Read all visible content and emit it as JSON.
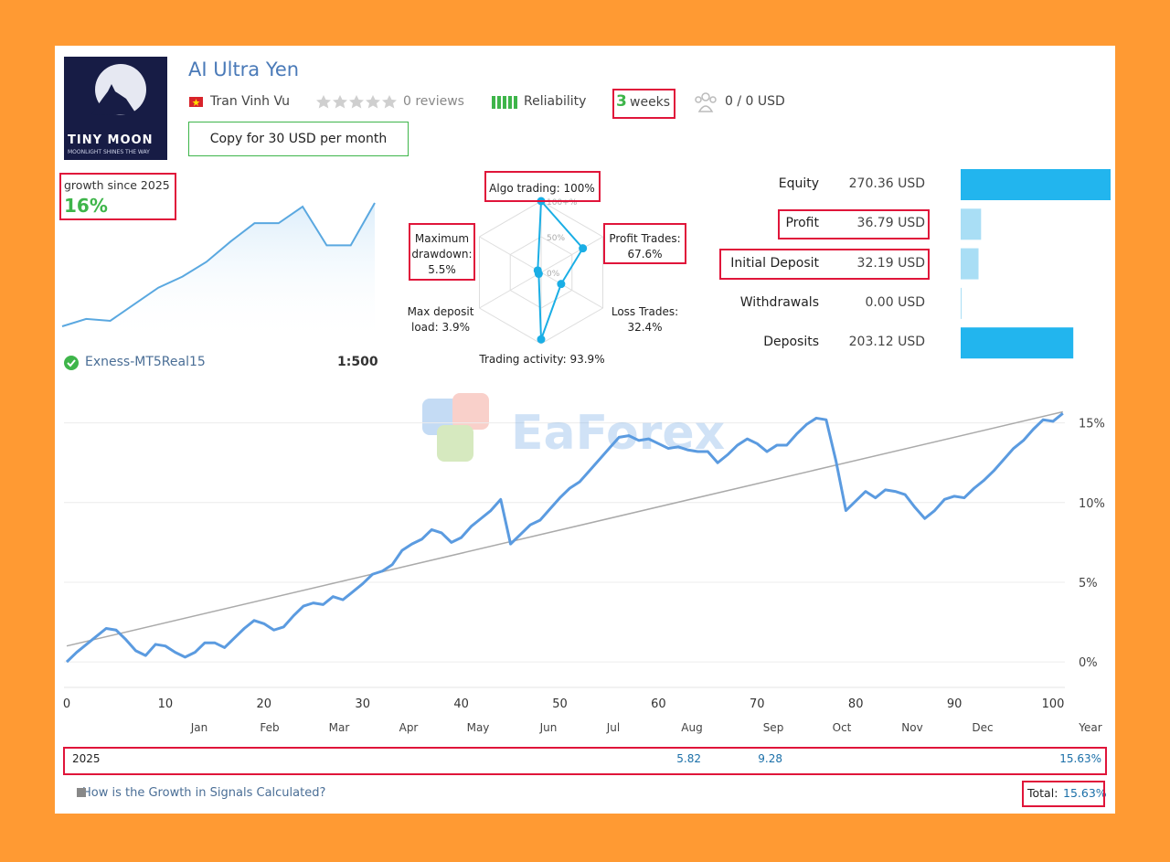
{
  "header": {
    "logo_title": "TINY MOON",
    "logo_subtitle": "MOONLIGHT SHINES THE WAY",
    "title": "AI Ultra Yen",
    "author": "Tran Vinh Vu",
    "reviews": "0 reviews",
    "reliability": "Reliability",
    "weeks_value": "3",
    "weeks_unit": "weeks",
    "subscribers": "0 / 0 USD",
    "copy_button": "Copy for 30 USD per month"
  },
  "growth": {
    "label": "growth since 2025",
    "value": "16%",
    "mini_values": [
      1,
      5,
      4,
      13,
      22,
      28,
      36,
      47,
      57,
      57,
      66,
      45,
      45,
      68
    ],
    "color": "#5aa8e0"
  },
  "account": {
    "broker": "Exness-MT5Real15",
    "leverage": "1:500"
  },
  "radar": {
    "type": "radar",
    "color": "#1aaee5",
    "ticks": [
      {
        "value": 0,
        "label": "0%"
      },
      {
        "value": 50,
        "label": "50%"
      },
      {
        "value": 100,
        "label": "100+%"
      }
    ],
    "axes": [
      {
        "name": "Algo trading:",
        "value": 100,
        "value_label": "100%"
      },
      {
        "name": "Profit Trades:",
        "value": 67.6,
        "value_label": "67.6%"
      },
      {
        "name": "Loss Trades:",
        "value": 32.4,
        "value_label": "32.4%"
      },
      {
        "name": "Trading activity:",
        "value": 93.9,
        "value_label": "93.9%"
      },
      {
        "name": "Max deposit load:",
        "value": 3.9,
        "value_label": "3.9%"
      },
      {
        "name": "Maximum drawdown:",
        "value": 5.5,
        "value_label": "5.5%"
      }
    ]
  },
  "balances": [
    {
      "name": "Equity",
      "value": 270.36,
      "value_label": "270.36 USD",
      "color": "#22b5ee"
    },
    {
      "name": "Profit",
      "value": 36.79,
      "value_label": "36.79 USD",
      "color": "#a9def5"
    },
    {
      "name": "Initial Deposit",
      "value": 32.19,
      "value_label": "32.19 USD",
      "color": "#a9def5"
    },
    {
      "name": "Withdrawals",
      "value": 0.0,
      "value_label": "0.00 USD",
      "color": "#a9def5"
    },
    {
      "name": "Deposits",
      "value": 203.12,
      "value_label": "203.12 USD",
      "color": "#22b5ee"
    }
  ],
  "chart_data": {
    "type": "line",
    "watermark": "EaForex",
    "x": [
      0,
      1,
      2,
      3,
      4,
      5,
      6,
      7,
      8,
      9,
      10,
      11,
      12,
      13,
      14,
      15,
      16,
      17,
      18,
      19,
      20,
      21,
      22,
      23,
      24,
      25,
      26,
      27,
      28,
      29,
      30,
      31,
      32,
      33,
      34,
      35,
      36,
      37,
      38,
      39,
      40,
      41,
      42,
      43,
      44,
      45,
      46,
      47,
      48,
      49,
      50,
      51,
      52,
      53,
      54,
      55,
      56,
      57,
      58,
      59,
      60,
      61,
      62,
      63,
      64,
      65,
      66,
      67,
      68,
      69,
      70,
      71,
      72,
      73,
      74,
      75,
      76,
      77,
      78,
      79,
      80,
      81,
      82,
      83,
      84,
      85,
      86,
      87,
      88,
      89,
      90,
      91,
      92,
      93,
      94,
      95,
      96,
      97,
      98,
      99,
      100,
      101
    ],
    "values": [
      0,
      0.6,
      1.1,
      1.6,
      2.1,
      2.0,
      1.4,
      0.7,
      0.4,
      1.1,
      1.0,
      0.6,
      0.3,
      0.6,
      1.2,
      1.2,
      0.9,
      1.5,
      2.1,
      2.6,
      2.4,
      2.0,
      2.2,
      2.9,
      3.5,
      3.7,
      3.6,
      4.1,
      3.9,
      4.4,
      4.9,
      5.5,
      5.7,
      6.1,
      7.0,
      7.4,
      7.7,
      8.3,
      8.1,
      7.5,
      7.8,
      8.5,
      9.0,
      9.5,
      10.2,
      7.4,
      8.0,
      8.6,
      8.9,
      9.6,
      10.3,
      10.9,
      11.3,
      12.0,
      12.7,
      13.4,
      14.1,
      14.2,
      13.9,
      14.0,
      13.7,
      13.4,
      13.5,
      13.3,
      13.2,
      13.2,
      12.5,
      13.0,
      13.6,
      14.0,
      13.7,
      13.2,
      13.6,
      13.6,
      14.3,
      14.9,
      15.3,
      15.2,
      12.6,
      9.5,
      10.1,
      10.7,
      10.3,
      10.8,
      10.7,
      10.5,
      9.7,
      9.0,
      9.5,
      10.2,
      10.4,
      10.3,
      10.9,
      11.4,
      12.0,
      12.7,
      13.4,
      13.9,
      14.6,
      15.2,
      15.1,
      15.6
    ],
    "color": "#5b9be0",
    "trend_x": [
      0,
      101
    ],
    "trend_values": [
      1.0,
      15.7
    ],
    "trend_color": "#aaaaaa",
    "xlim": [
      0,
      101
    ],
    "ylim": [
      -1.6,
      16.3
    ],
    "xticks": [
      0,
      10,
      20,
      30,
      40,
      50,
      60,
      70,
      80,
      90,
      100
    ],
    "yticks": [
      {
        "value": 0,
        "label": "0%"
      },
      {
        "value": 5,
        "label": "5%"
      },
      {
        "value": 10,
        "label": "10%"
      },
      {
        "value": 15,
        "label": "15%"
      }
    ],
    "grid": true
  },
  "year_table": {
    "columns": [
      "Jan",
      "Feb",
      "Mar",
      "Apr",
      "May",
      "Jun",
      "Jul",
      "Aug",
      "Sep",
      "Oct",
      "Nov",
      "Dec",
      "Year"
    ],
    "rows": [
      {
        "year": "2025",
        "cells": [
          null,
          null,
          null,
          null,
          null,
          null,
          null,
          "5.82",
          "9.28",
          null,
          null,
          null,
          "15.63%"
        ]
      }
    ]
  },
  "footer": {
    "link": "How is the Growth in Signals Calculated?",
    "total_label": "Total:",
    "total_value": "15.63%"
  }
}
